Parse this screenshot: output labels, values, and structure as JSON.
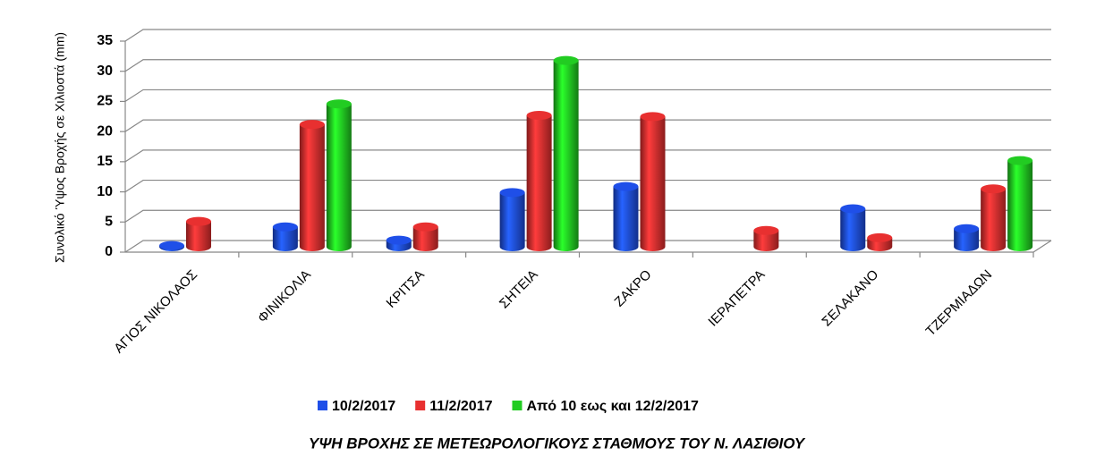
{
  "chart_data": {
    "type": "bar3d",
    "title": "ΥΨΗ ΒΡΟΧΗΣ ΣΕ ΜΕΤΕΩΡΟΛΟΓΙΚΟΥΣ ΣΤΑΘΜΟΥΣ ΤΟΥ Ν. ΛΑΣΙΘΙΟΥ",
    "y_label": "Συνολικό Ύψος Βροχής σε Χιλιοστά (mm)",
    "categories": [
      "ΑΓΙΟΣ ΝΙΚΟΛΑΟΣ",
      "ΦΙΝΙΚΟΛΙΑ",
      "ΚΡΙΤΣΑ",
      "ΣΗΤΕΙΑ",
      "ΖΑΚΡΟ",
      "ΙΕΡΑΠΕΤΡΑ",
      "ΣΕΛΑΚΑΝΟ",
      "ΤΖΕΡΜΙΑΔΩΝ"
    ],
    "series": [
      {
        "name": "10/2/2017",
        "color": "#1f4fe8",
        "values": [
          0.2,
          3.3,
          1.1,
          9,
          10,
          null,
          6.3,
          3
        ]
      },
      {
        "name": "11/2/2017",
        "color": "#e83030",
        "values": [
          4.2,
          20.3,
          3.3,
          21.8,
          21.6,
          2.7,
          1.5,
          9.6
        ]
      },
      {
        "name": "Από 10 εως και 12/2/2017",
        "color": "#22cc22",
        "values": [
          null,
          23.7,
          null,
          30.9,
          null,
          null,
          null,
          14.3
        ]
      }
    ],
    "ylim": [
      0,
      35
    ],
    "yticks": [
      0,
      5,
      10,
      15,
      20,
      25,
      30,
      35
    ],
    "grid": true
  }
}
